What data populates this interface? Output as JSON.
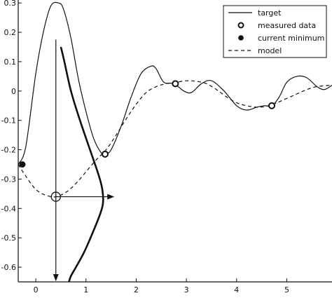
{
  "chart_data": {
    "type": "line",
    "xlim": [
      -0.35,
      5.9
    ],
    "ylim": [
      -0.65,
      0.31
    ],
    "x_ticks": [
      "0",
      "1",
      "2",
      "3",
      "4",
      "5"
    ],
    "y_ticks": [
      "0.3",
      "0.2",
      "0.1",
      "0",
      "-0.1",
      "-0.2",
      "-0.3",
      "-0.4",
      "-0.5",
      "-0.6"
    ],
    "grid": false,
    "legend_position": "top-right",
    "legend": [
      {
        "label": "target",
        "style": "solid"
      },
      {
        "label": "measured data",
        "style": "open-circle"
      },
      {
        "label": "current minimum",
        "style": "filled-circle"
      },
      {
        "label": "model",
        "style": "dashed"
      }
    ],
    "series": [
      {
        "name": "target",
        "style": "solid",
        "x": [
          -0.35,
          -0.2,
          0.0,
          0.15,
          0.3,
          0.45,
          0.55,
          0.7,
          0.85,
          1.0,
          1.15,
          1.3,
          1.38,
          1.5,
          1.7,
          1.9,
          2.1,
          2.3,
          2.4,
          2.55,
          2.75,
          2.95,
          3.1,
          3.3,
          3.5,
          3.75,
          4.0,
          4.2,
          4.4,
          4.55,
          4.7,
          4.85,
          5.0,
          5.2,
          5.4,
          5.6,
          5.75,
          5.9
        ],
        "y": [
          -0.25,
          -0.19,
          0.06,
          0.2,
          0.29,
          0.3,
          0.28,
          0.18,
          0.04,
          -0.07,
          -0.16,
          -0.21,
          -0.215,
          -0.2,
          -0.12,
          -0.02,
          0.06,
          0.085,
          0.075,
          0.03,
          0.025,
          0.0,
          -0.005,
          0.025,
          0.035,
          0.0,
          -0.05,
          -0.065,
          -0.055,
          -0.05,
          -0.05,
          -0.02,
          0.03,
          0.05,
          0.045,
          0.015,
          0.005,
          0.02
        ]
      },
      {
        "name": "model",
        "style": "dashed",
        "x": [
          -0.35,
          -0.2,
          0.0,
          0.2,
          0.4,
          0.6,
          0.8,
          1.0,
          1.2,
          1.4,
          1.6,
          1.8,
          2.0,
          2.2,
          2.4,
          2.6,
          2.8,
          3.0,
          3.2,
          3.4,
          3.6,
          3.8,
          4.0,
          4.2,
          4.4,
          4.6,
          4.8,
          5.0,
          5.2,
          5.4,
          5.6,
          5.9
        ],
        "y": [
          -0.25,
          -0.29,
          -0.335,
          -0.355,
          -0.36,
          -0.345,
          -0.315,
          -0.275,
          -0.235,
          -0.2,
          -0.15,
          -0.095,
          -0.045,
          -0.005,
          0.015,
          0.025,
          0.03,
          0.035,
          0.033,
          0.025,
          0.005,
          -0.02,
          -0.04,
          -0.05,
          -0.055,
          -0.052,
          -0.04,
          -0.025,
          -0.01,
          0.005,
          0.015,
          0.02
        ]
      }
    ],
    "measured_data": {
      "x": [
        1.38,
        2.78,
        4.7
      ],
      "y": [
        -0.215,
        0.025,
        -0.05
      ]
    },
    "current_minimum": {
      "x": [
        -0.35
      ],
      "y": [
        -0.25
      ]
    },
    "annotations": {
      "model_point": {
        "x": 0.4,
        "y": -0.36
      },
      "vertical_arrow": {
        "x": 0.4,
        "y_from": 0.175,
        "y_to": -0.65
      },
      "horizontal_arrow": {
        "y": -0.36,
        "x_from": 0.4,
        "x_to": 1.55
      },
      "distribution_curve": {
        "x": [
          0.5,
          0.57,
          0.7,
          0.88,
          1.08,
          1.24,
          1.32,
          1.34,
          1.28,
          1.14,
          0.96,
          0.8,
          0.7,
          0.66
        ],
        "y": [
          0.15,
          0.1,
          0.0,
          -0.1,
          -0.2,
          -0.28,
          -0.33,
          -0.38,
          -0.42,
          -0.48,
          -0.55,
          -0.6,
          -0.63,
          -0.65
        ]
      }
    }
  }
}
